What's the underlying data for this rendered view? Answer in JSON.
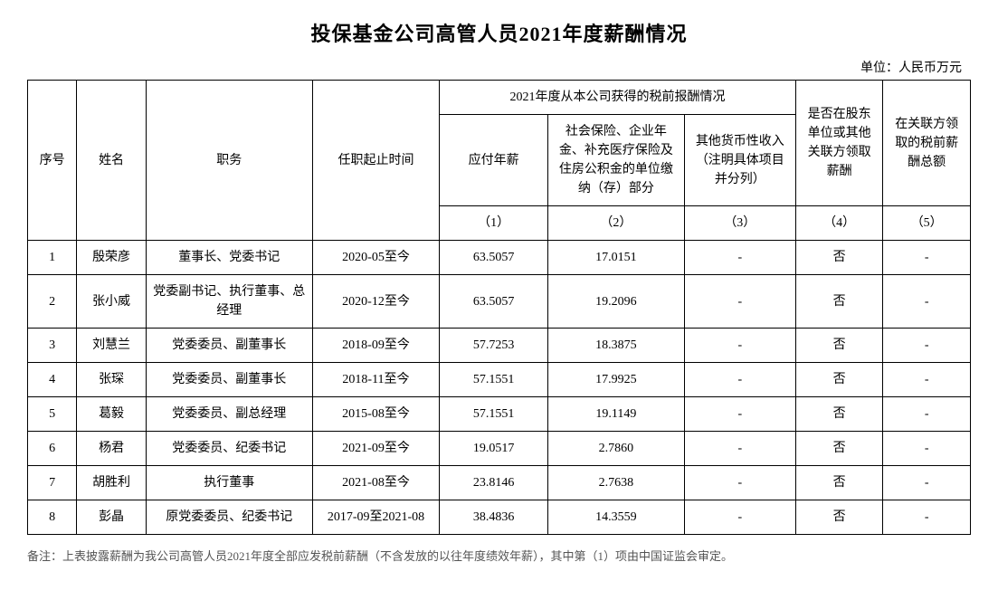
{
  "title": "投保基金公司高管人员2021年度薪酬情况",
  "unit": "单位：人民币万元",
  "headers": {
    "seq": "序号",
    "name": "姓名",
    "position": "职务",
    "tenure": "任职起止时间",
    "comp_group": "2021年度从本公司获得的税前报酬情况",
    "salary": "应付年薪",
    "social": "社会保险、企业年金、补充医疗保险及住房公积金的单位缴纳（存）部分",
    "other": "其他货币性收入（注明具体项目并分列）",
    "shareholder": "是否在股东单位或其他关联方领取薪酬",
    "related_total": "在关联方领取的税前薪酬总额",
    "sub1": "（1）",
    "sub2": "（2）",
    "sub3": "（3）",
    "sub4": "（4）",
    "sub5": "（5）"
  },
  "rows": [
    {
      "seq": "1",
      "name": "殷荣彦",
      "position": "董事长、党委书记",
      "tenure": "2020-05至今",
      "salary": "63.5057",
      "social": "17.0151",
      "other": "-",
      "shareholder": "否",
      "related": "-"
    },
    {
      "seq": "2",
      "name": "张小威",
      "position": "党委副书记、执行董事、总经理",
      "tenure": "2020-12至今",
      "salary": "63.5057",
      "social": "19.2096",
      "other": "-",
      "shareholder": "否",
      "related": "-"
    },
    {
      "seq": "3",
      "name": "刘慧兰",
      "position": "党委委员、副董事长",
      "tenure": "2018-09至今",
      "salary": "57.7253",
      "social": "18.3875",
      "other": "-",
      "shareholder": "否",
      "related": "-"
    },
    {
      "seq": "4",
      "name": "张琛",
      "position": "党委委员、副董事长",
      "tenure": "2018-11至今",
      "salary": "57.1551",
      "social": "17.9925",
      "other": "-",
      "shareholder": "否",
      "related": "-"
    },
    {
      "seq": "5",
      "name": "葛毅",
      "position": "党委委员、副总经理",
      "tenure": "2015-08至今",
      "salary": "57.1551",
      "social": "19.1149",
      "other": "-",
      "shareholder": "否",
      "related": "-"
    },
    {
      "seq": "6",
      "name": "杨君",
      "position": "党委委员、纪委书记",
      "tenure": "2021-09至今",
      "salary": "19.0517",
      "social": "2.7860",
      "other": "-",
      "shareholder": "否",
      "related": "-"
    },
    {
      "seq": "7",
      "name": "胡胜利",
      "position": "执行董事",
      "tenure": "2021-08至今",
      "salary": "23.8146",
      "social": "2.7638",
      "other": "-",
      "shareholder": "否",
      "related": "-"
    },
    {
      "seq": "8",
      "name": "彭晶",
      "position": "原党委委员、纪委书记",
      "tenure": "2017-09至2021-08",
      "salary": "38.4836",
      "social": "14.3559",
      "other": "-",
      "shareholder": "否",
      "related": "-"
    }
  ],
  "footnote": "备注：上表披露薪酬为我公司高管人员2021年度全部应发税前薪酬（不含发放的以往年度绩效年薪），其中第（1）项由中国证监会审定。"
}
